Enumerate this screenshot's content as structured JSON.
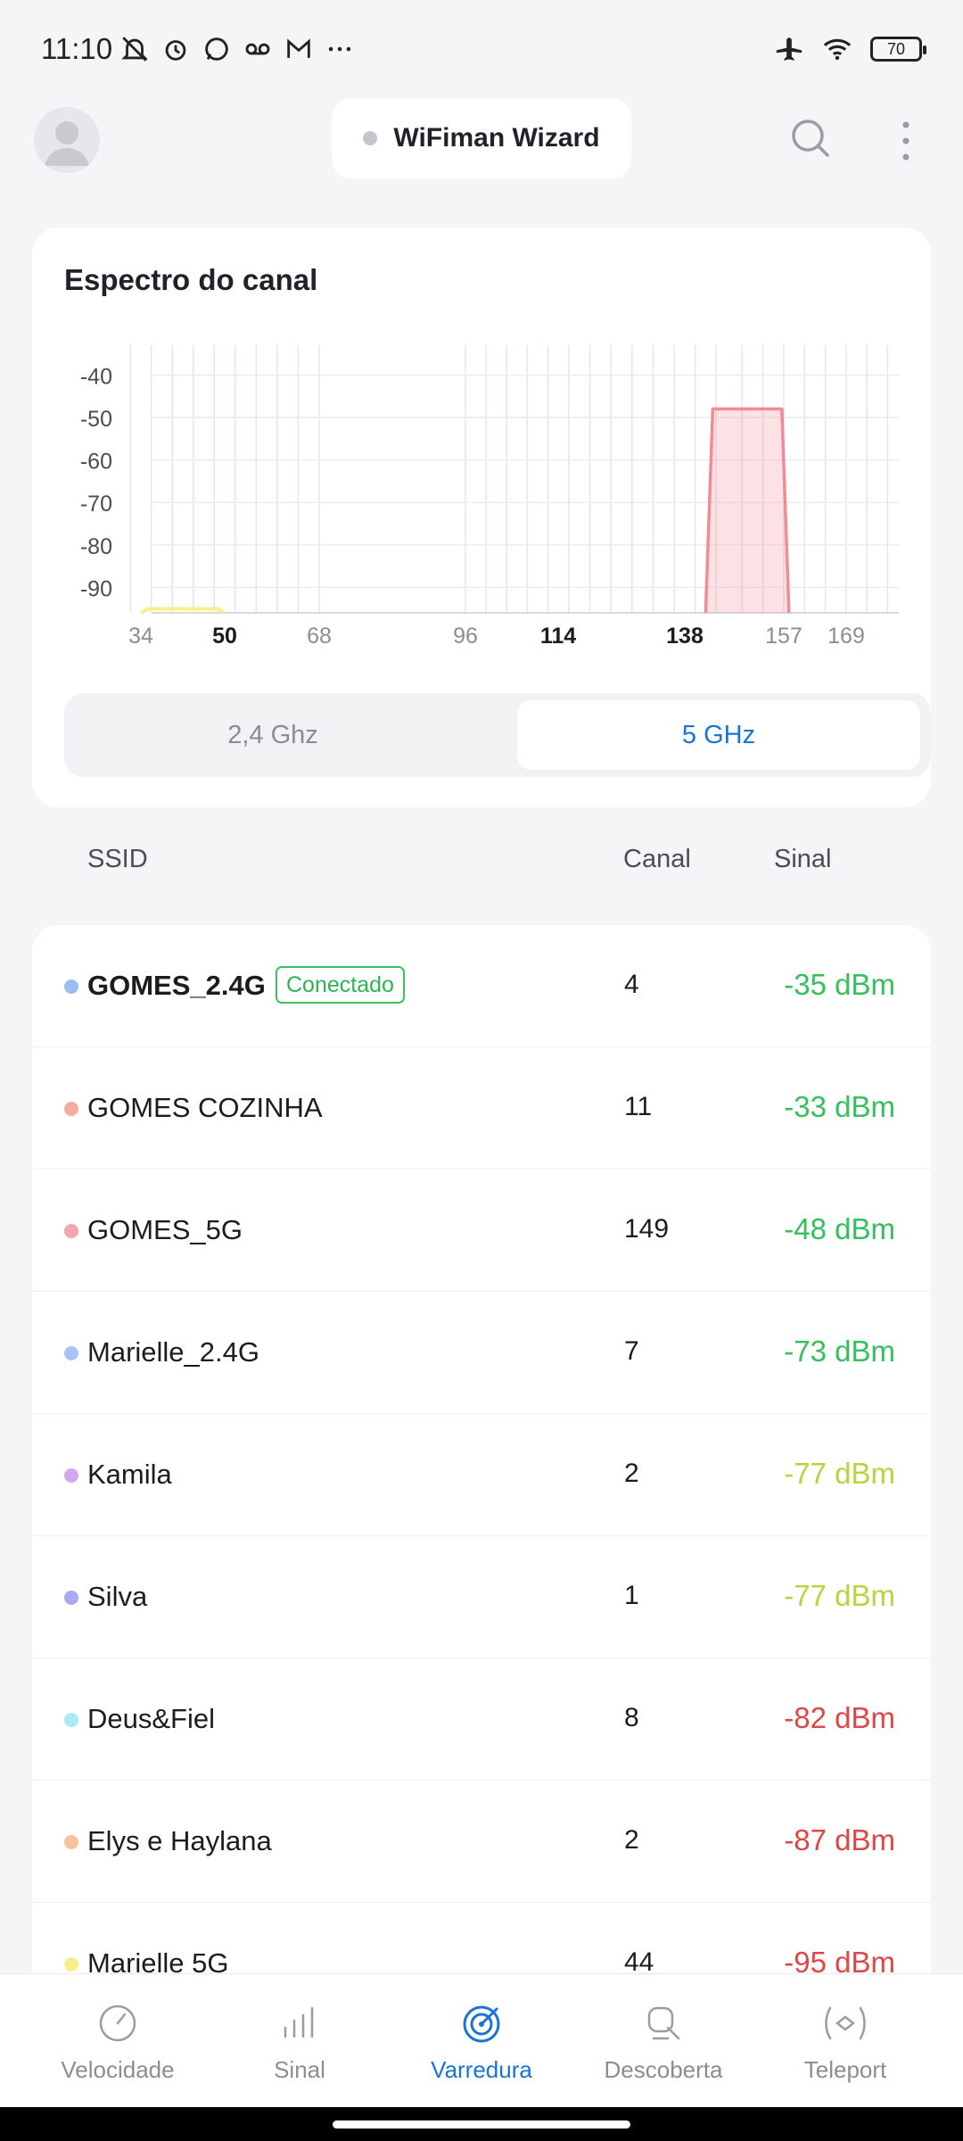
{
  "status_bar": {
    "time": "11:10",
    "battery": "70"
  },
  "header": {
    "wizard_label": "WiFiman Wizard"
  },
  "spectrum": {
    "title": "Espectro do canal",
    "bands": [
      "2,4 Ghz",
      "5 GHz"
    ],
    "selected_band": "5 GHz"
  },
  "chart_data": {
    "type": "area",
    "title": "Espectro do canal",
    "xlabel": "",
    "ylabel": "",
    "x_ticks": [
      "34",
      "50",
      "68",
      "96",
      "114",
      "138",
      "157",
      "169"
    ],
    "x_ticks_bold": [
      "50",
      "114",
      "138"
    ],
    "y_ticks": [
      "-40",
      "-50",
      "-60",
      "-70",
      "-80",
      "-90"
    ],
    "ylim": [
      -96,
      -33
    ],
    "grid": true,
    "series": [
      {
        "channel_start": 34,
        "channel_end": 50,
        "peak": -95,
        "color": "#f7ef8a"
      },
      {
        "channel_start": 142,
        "channel_end": 158,
        "peak": -48,
        "color": "#f28b94"
      }
    ]
  },
  "table_header": {
    "ssid": "SSID",
    "channel": "Canal",
    "signal": "Sinal"
  },
  "networks": [
    {
      "ssid": "GOMES_2.4G",
      "connected_label": "Conectado",
      "channel": "4",
      "signal": "-35 dBm",
      "dot_color": "#9dbcf3",
      "signal_color": "#34c05a"
    },
    {
      "ssid": "GOMES COZINHA",
      "channel": "11",
      "signal": "-33 dBm",
      "dot_color": "#f2aca2",
      "signal_color": "#34c05a"
    },
    {
      "ssid": "GOMES_5G",
      "channel": "149",
      "signal": "-48 dBm",
      "dot_color": "#f6a3aa",
      "signal_color": "#34c05a"
    },
    {
      "ssid": "Marielle_2.4G",
      "channel": "7",
      "signal": "-73 dBm",
      "dot_color": "#a6c4f6",
      "signal_color": "#34c05a"
    },
    {
      "ssid": "Kamila",
      "channel": "2",
      "signal": "-77 dBm",
      "dot_color": "#cfa8f2",
      "signal_color": "#b9d33c"
    },
    {
      "ssid": "Silva",
      "channel": "1",
      "signal": "-77 dBm",
      "dot_color": "#a8aaf2",
      "signal_color": "#b9d33c"
    },
    {
      "ssid": "Deus&Fiel",
      "channel": "8",
      "signal": "-82 dBm",
      "dot_color": "#a7e9f4",
      "signal_color": "#e04646"
    },
    {
      "ssid": "Elys e Haylana",
      "channel": "2",
      "signal": "-87 dBm",
      "dot_color": "#f8c4a0",
      "signal_color": "#e04646"
    },
    {
      "ssid": "Marielle 5G",
      "channel": "44",
      "signal": "-95 dBm",
      "dot_color": "#f6f08c",
      "signal_color": "#e04646"
    }
  ],
  "nav": {
    "items": [
      {
        "label": "Velocidade",
        "icon": "speedometer-icon"
      },
      {
        "label": "Sinal",
        "icon": "signal-bars-icon"
      },
      {
        "label": "Varredura",
        "icon": "radar-icon"
      },
      {
        "label": "Descoberta",
        "icon": "device-search-icon"
      },
      {
        "label": "Teleport",
        "icon": "teleport-icon"
      }
    ],
    "active": "Varredura"
  },
  "colors": {
    "accent": "#1a73d6",
    "connected": "#2fb352"
  }
}
